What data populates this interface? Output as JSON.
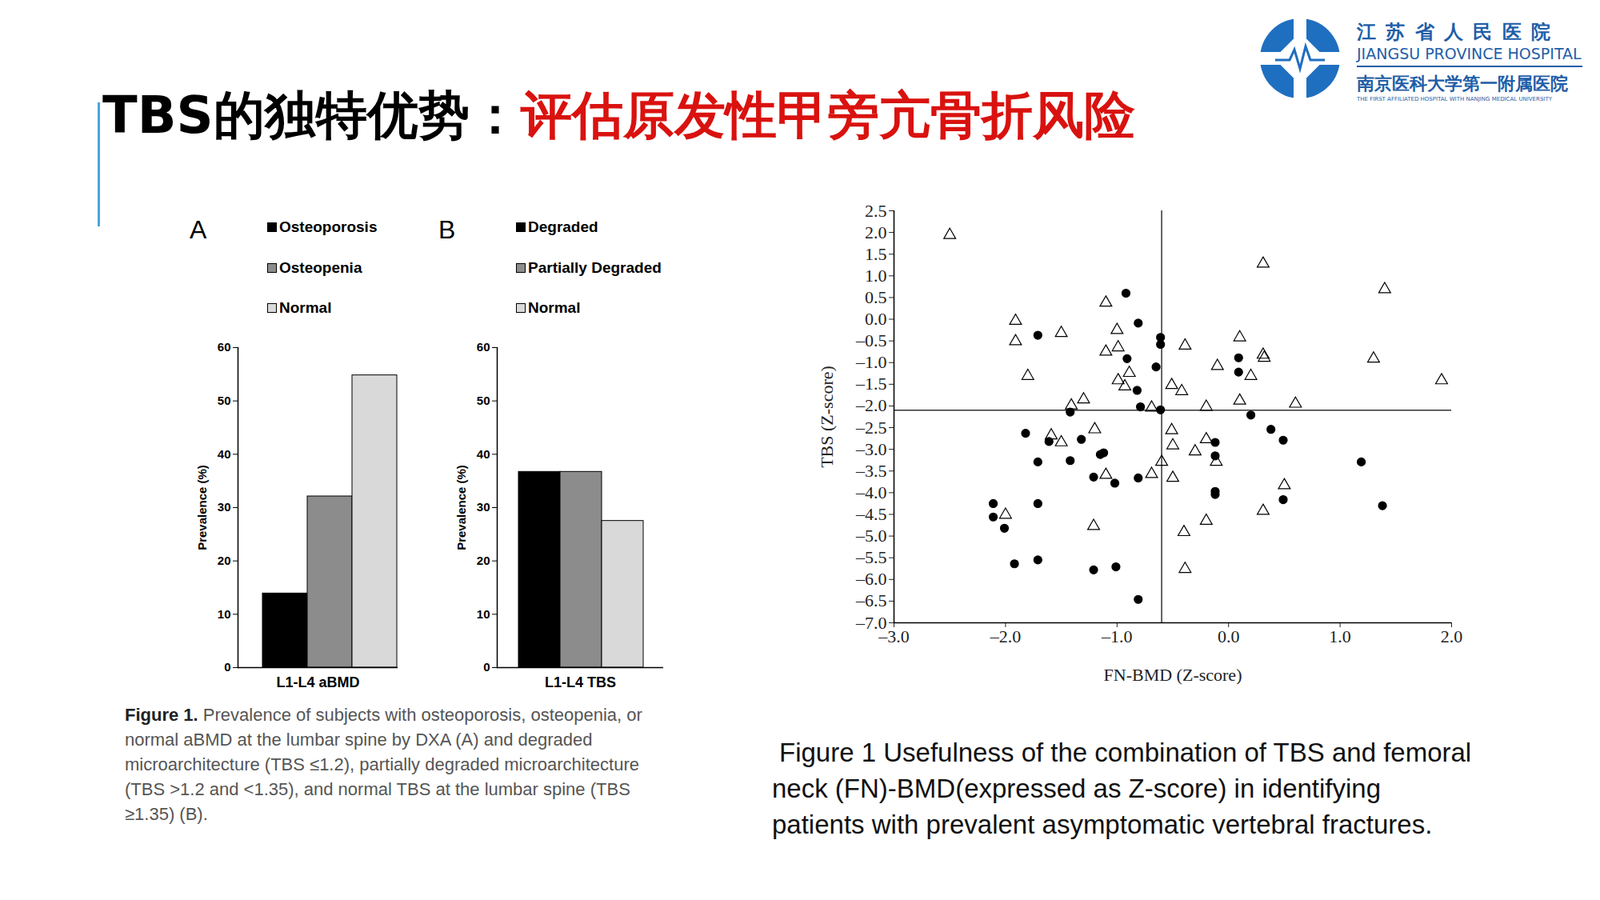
{
  "slide": {
    "title_black": "TBS的独特优势：",
    "title_red": "评估原发性甲旁亢骨折风险",
    "logo": {
      "line1": "江 苏 省 人 民 医 院",
      "line2": "JIANGSU PROVINCE HOSPITAL",
      "line3": "南京医科大学第一附属医院",
      "line4": "THE FIRST AFFILIATED HOSPITAL WITH NANJING MEDICAL UNIVERSITY"
    },
    "left_caption": {
      "label": "Figure 1.",
      "lines": [
        " Prevalence of subjects with osteoporosis, osteopenia, or",
        "normal aBMD at the lumbar spine by DXA (A) and degraded",
        "microarchitecture (TBS ≤1.2), partially degraded microarchitecture",
        "(TBS >1.2 and <1.35), and normal TBS at the lumbar spine (TBS",
        "≥1.35) (B)."
      ]
    },
    "right_caption": {
      "lines": [
        "Figure 1 Usefulness of the combination of TBS and femoral",
        "neck (FN)-BMD(expressed as Z-score) in identifying",
        "patients with prevalent asymptomatic vertebral fractures."
      ]
    }
  },
  "chart_data": [
    {
      "type": "bar",
      "panel_label": "A",
      "categories": [
        "Osteoporosis",
        "Osteopenia",
        "Normal"
      ],
      "values": [
        13.9,
        32.1,
        54.8
      ],
      "colors": [
        "#000000",
        "#8c8c8c",
        "#d9d9d9"
      ],
      "xlabel": "L1-L4 aBMD",
      "ylabel": "Prevalence (%)",
      "ylim": [
        0,
        60
      ],
      "yticks": [
        0,
        10,
        20,
        30,
        40,
        50,
        60
      ],
      "legend": "top",
      "tick_labels": "y"
    },
    {
      "type": "bar",
      "panel_label": "B",
      "categories": [
        "Degraded",
        "Partially Degraded",
        "Normal"
      ],
      "values": [
        36.7,
        36.7,
        27.5
      ],
      "colors": [
        "#000000",
        "#8c8c8c",
        "#d9d9d9"
      ],
      "xlabel": "L1-L4 TBS",
      "ylabel": "Prevalence (%)",
      "ylim": [
        0,
        60
      ],
      "yticks": [
        0,
        10,
        20,
        30,
        40,
        50,
        60
      ],
      "legend": "top",
      "tick_labels": "y"
    },
    {
      "type": "scatter",
      "xlabel": "FN-BMD (Z-score)",
      "ylabel": "TBS (Z-score)",
      "xlim": [
        -3,
        2
      ],
      "xticks": [
        {
          "value": -3,
          "label": "–3.0"
        },
        {
          "value": -2,
          "label": "–2.0"
        },
        {
          "value": -1,
          "label": "–1.0"
        },
        {
          "value": 0,
          "label": "0.0"
        },
        {
          "value": 1,
          "label": "1.0"
        },
        {
          "value": 2,
          "label": "2.0"
        }
      ],
      "ylim": [
        -7,
        2.5
      ],
      "yticks": [
        2.5,
        {
          "value": 2,
          "label": "2.0"
        },
        1.5,
        {
          "value": 1,
          "label": "1.0"
        },
        0.5,
        {
          "value": 0,
          "label": "0.0"
        },
        {
          "value": -0.5,
          "label": "–0.5"
        },
        {
          "value": -1,
          "label": "–1.0"
        },
        {
          "value": -1.5,
          "label": "–1.5"
        },
        {
          "value": -2,
          "label": "–2.0"
        },
        {
          "value": -2.5,
          "label": "–2.5"
        },
        {
          "value": -3,
          "label": "–3.0"
        },
        {
          "value": -3.5,
          "label": "–3.5"
        },
        {
          "value": -4,
          "label": "–4.0"
        },
        {
          "value": -4.5,
          "label": "–4.5"
        },
        {
          "value": -5,
          "label": "–5.0"
        },
        {
          "value": -5.5,
          "label": "–5.5"
        },
        {
          "value": -6,
          "label": "–6.0"
        },
        {
          "value": -6.5,
          "label": "–6.5"
        },
        {
          "value": -7,
          "label": "–7.0"
        }
      ],
      "reference_lines": {
        "x": -0.6,
        "y": -2.1
      },
      "series": [
        {
          "marker": "circle",
          "color": "#000000",
          "x": [
            -0.92,
            -0.81,
            -1.71,
            -0.61,
            -0.61,
            -0.91,
            -0.65,
            0.09,
            0.09,
            -0.82,
            -0.79,
            -1.42,
            -0.61,
            0.2,
            -1.82,
            0.38,
            0.49,
            -1.61,
            -1.32,
            -1.12,
            -1.15,
            -0.12,
            -0.12,
            -1.71,
            -1.42,
            -1.21,
            -1.02,
            -0.81,
            -0.12,
            -0.12,
            1.19,
            0.49,
            1.38,
            -2.11,
            -1.71,
            -2.11,
            -2.01,
            -1.92,
            -1.71,
            -1.21,
            -1.01,
            -0.81
          ],
          "y": [
            0.6,
            -0.09,
            -0.37,
            -0.42,
            -0.58,
            -0.91,
            -1.1,
            -0.89,
            -1.22,
            -1.64,
            -2.02,
            -2.14,
            -2.09,
            -2.21,
            -2.63,
            -2.54,
            -2.79,
            -2.82,
            -2.77,
            -3.08,
            -3.12,
            -2.84,
            -3.15,
            -3.29,
            -3.26,
            -3.64,
            -3.78,
            -3.66,
            -3.97,
            -4.04,
            -3.29,
            -4.16,
            -4.3,
            -4.25,
            -4.25,
            -4.56,
            -4.82,
            -5.64,
            -5.55,
            -5.78,
            -5.71,
            -6.46
          ]
        },
        {
          "marker": "triangle-open",
          "color": "#000000",
          "x": [
            -2.5,
            0.31,
            1.4,
            -1.1,
            -1.91,
            -1.0,
            -1.5,
            0.1,
            -1.91,
            -0.99,
            -1.1,
            -0.39,
            0.31,
            0.32,
            1.3,
            -0.1,
            -1.8,
            -0.89,
            0.2,
            -0.99,
            -0.93,
            -0.51,
            -0.42,
            1.91,
            -1.3,
            -1.41,
            -0.69,
            -0.2,
            0.1,
            0.6,
            -1.2,
            -0.51,
            -1.59,
            -1.5,
            -0.2,
            -0.5,
            -0.3,
            -0.6,
            -0.11,
            -1.1,
            -0.69,
            -0.5,
            0.5,
            0.31,
            -2.0,
            -0.2,
            -1.21,
            -0.4,
            -0.39
          ],
          "y": [
            1.94,
            1.28,
            0.69,
            0.38,
            -0.04,
            -0.25,
            -0.32,
            -0.42,
            -0.51,
            -0.65,
            -0.75,
            -0.61,
            -0.82,
            -0.89,
            -0.91,
            -1.08,
            -1.31,
            -1.24,
            -1.31,
            -1.41,
            -1.55,
            -1.52,
            -1.66,
            -1.41,
            -1.85,
            -1.99,
            -2.04,
            -2.02,
            -1.88,
            -1.95,
            -2.54,
            -2.56,
            -2.68,
            -2.84,
            -2.77,
            -2.91,
            -3.05,
            -3.29,
            -3.29,
            -3.59,
            -3.57,
            -3.66,
            -3.83,
            -4.42,
            -4.51,
            -4.65,
            -4.77,
            -4.91,
            -5.76
          ]
        }
      ]
    }
  ]
}
